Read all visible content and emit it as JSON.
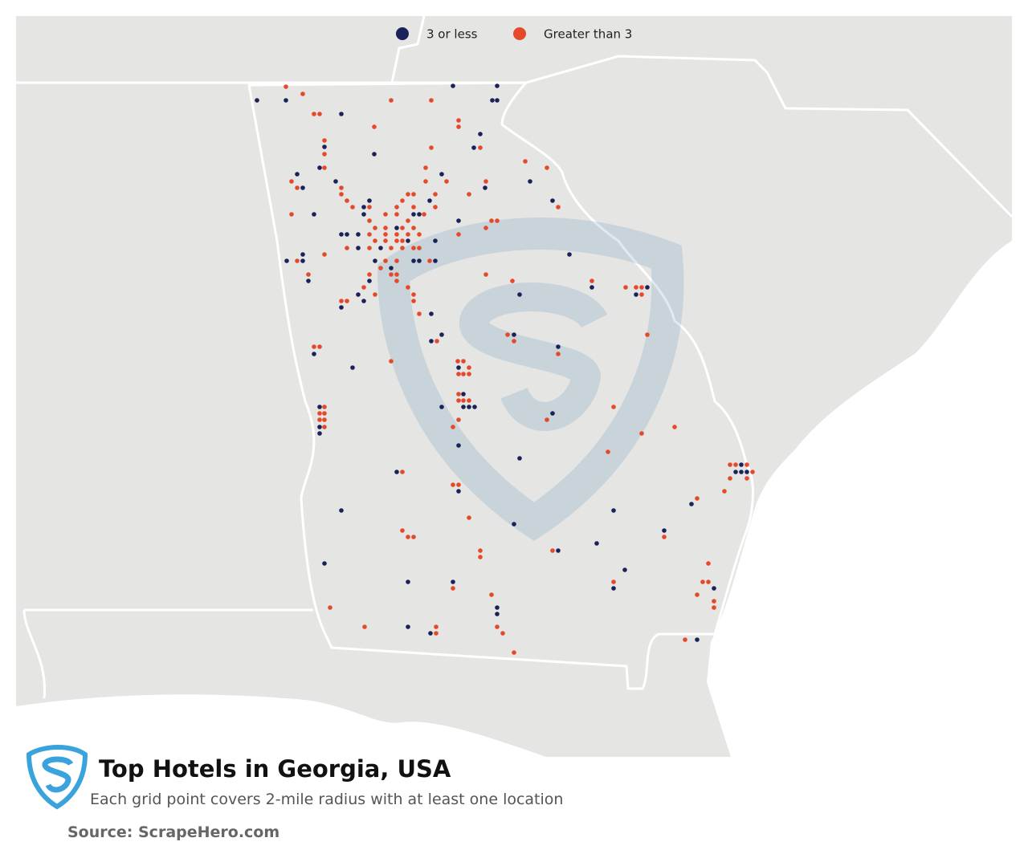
{
  "legend": {
    "items": [
      {
        "label": "3 or less",
        "color": "#1b2159"
      },
      {
        "label": "Greater than 3",
        "color": "#e5492a"
      }
    ]
  },
  "title": "Top Hotels in Georgia, USA",
  "subtitle": "Each grid point covers 2-mile radius with at least one location",
  "source": "Source: ScrapeHero.com"
}
